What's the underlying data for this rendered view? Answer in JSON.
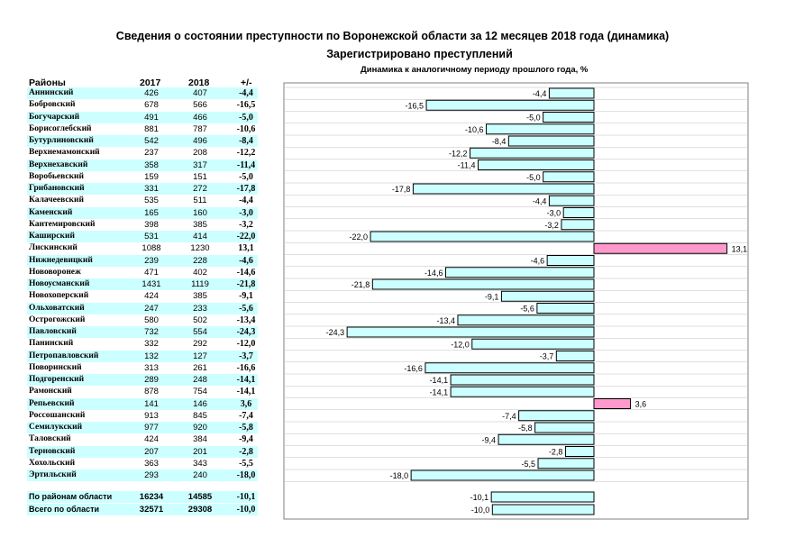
{
  "title": "Сведения о состоянии преступности по Воронежской области  за 12 месяцев 2018 года (динамика)",
  "subtitle": "Зарегистрировано преступлений",
  "table": {
    "headers": {
      "district": "Районы",
      "y2017": "2017",
      "y2018": "2018",
      "change": "+/-"
    },
    "rows": [
      {
        "name": "Аннинский",
        "y2017": "426",
        "y2018": "407",
        "change": "-4,4"
      },
      {
        "name": "Бобровский",
        "y2017": "678",
        "y2018": "566",
        "change": "-16,5"
      },
      {
        "name": "Богучарский",
        "y2017": "491",
        "y2018": "466",
        "change": "-5,0"
      },
      {
        "name": "Борисоглебский",
        "y2017": "881",
        "y2018": "787",
        "change": "-10,6"
      },
      {
        "name": "Бутурлиновский",
        "y2017": "542",
        "y2018": "496",
        "change": "-8,4"
      },
      {
        "name": "Верхнемамонский",
        "y2017": "237",
        "y2018": "208",
        "change": "-12,2"
      },
      {
        "name": "Верхнехавский",
        "y2017": "358",
        "y2018": "317",
        "change": "-11,4"
      },
      {
        "name": "Воробьевский",
        "y2017": "159",
        "y2018": "151",
        "change": "-5,0"
      },
      {
        "name": "Грибановский",
        "y2017": "331",
        "y2018": "272",
        "change": "-17,8"
      },
      {
        "name": "Калачеевский",
        "y2017": "535",
        "y2018": "511",
        "change": "-4,4"
      },
      {
        "name": "Каменский",
        "y2017": "165",
        "y2018": "160",
        "change": "-3,0"
      },
      {
        "name": "Кантемировский",
        "y2017": "398",
        "y2018": "385",
        "change": "-3,2"
      },
      {
        "name": "Каширский",
        "y2017": "531",
        "y2018": "414",
        "change": "-22,0"
      },
      {
        "name": "Лискинский",
        "y2017": "1088",
        "y2018": "1230",
        "change": "13,1"
      },
      {
        "name": "Нижнедевицкий",
        "y2017": "239",
        "y2018": "228",
        "change": "-4,6"
      },
      {
        "name": "Нововоронеж",
        "y2017": "471",
        "y2018": "402",
        "change": "-14,6"
      },
      {
        "name": "Новоусманский",
        "y2017": "1431",
        "y2018": "1119",
        "change": "-21,8"
      },
      {
        "name": "Новохоперский",
        "y2017": "424",
        "y2018": "385",
        "change": "-9,1"
      },
      {
        "name": "Ольховатский",
        "y2017": "247",
        "y2018": "233",
        "change": "-5,6"
      },
      {
        "name": "Острогожский",
        "y2017": "580",
        "y2018": "502",
        "change": "-13,4"
      },
      {
        "name": "Павловский",
        "y2017": "732",
        "y2018": "554",
        "change": "-24,3"
      },
      {
        "name": "Панинский",
        "y2017": "332",
        "y2018": "292",
        "change": "-12,0"
      },
      {
        "name": "Петропавловский",
        "y2017": "132",
        "y2018": "127",
        "change": "-3,7"
      },
      {
        "name": "Поворинский",
        "y2017": "313",
        "y2018": "261",
        "change": "-16,6"
      },
      {
        "name": "Подгоренский",
        "y2017": "289",
        "y2018": "248",
        "change": "-14,1"
      },
      {
        "name": "Рамонский",
        "y2017": "878",
        "y2018": "754",
        "change": "-14,1"
      },
      {
        "name": "Репьевский",
        "y2017": "141",
        "y2018": "146",
        "change": "3,6"
      },
      {
        "name": "Россошанский",
        "y2017": "913",
        "y2018": "845",
        "change": "-7,4"
      },
      {
        "name": "Семилукский",
        "y2017": "977",
        "y2018": "920",
        "change": "-5,8"
      },
      {
        "name": "Таловский",
        "y2017": "424",
        "y2018": "384",
        "change": "-9,4"
      },
      {
        "name": "Терновский",
        "y2017": "207",
        "y2018": "201",
        "change": "-2,8"
      },
      {
        "name": "Хохольский",
        "y2017": "363",
        "y2018": "343",
        "change": "-5,5"
      },
      {
        "name": "Эртильский",
        "y2017": "293",
        "y2018": "240",
        "change": "-18,0"
      }
    ],
    "totals": [
      {
        "name": "По районам области",
        "y2017": "16234",
        "y2018": "14585",
        "change": "-10,1"
      },
      {
        "name": "Всего по области",
        "y2017": "32571",
        "y2018": "29308",
        "change": "-10,0"
      }
    ]
  },
  "chart_data": {
    "type": "bar",
    "orientation": "horizontal",
    "title": "Динамика к аналогичному периоду прошлого года, %",
    "categories": [
      "Аннинский",
      "Бобровский",
      "Богучарский",
      "Борисоглебский",
      "Бутурлиновский",
      "Верхнемамонский",
      "Верхнехавский",
      "Воробьевский",
      "Грибановский",
      "Калачеевский",
      "Каменский",
      "Кантемировский",
      "Каширский",
      "Лискинский",
      "Нижнедевицкий",
      "Нововоронеж",
      "Новоусманский",
      "Новохоперский",
      "Ольховатский",
      "Острогожский",
      "Павловский",
      "Панинский",
      "Петропавловский",
      "Поворинский",
      "Подгоренский",
      "Рамонский",
      "Репьевский",
      "Россошанский",
      "Семилукский",
      "Таловский",
      "Терновский",
      "Хохольский",
      "Эртильский"
    ],
    "values": [
      -4.4,
      -16.5,
      -5.0,
      -10.6,
      -8.4,
      -12.2,
      -11.4,
      -5.0,
      -17.8,
      -4.4,
      -3.0,
      -3.2,
      -22.0,
      13.1,
      -4.6,
      -14.6,
      -21.8,
      -9.1,
      -5.6,
      -13.4,
      -24.3,
      -12.0,
      -3.7,
      -16.6,
      -14.1,
      -14.1,
      3.6,
      -7.4,
      -5.8,
      -9.4,
      -2.8,
      -5.5,
      -18.0
    ],
    "labels": [
      "-4,4",
      "-16,5",
      "-5,0",
      "-10,6",
      "-8,4",
      "-12,2",
      "-11,4",
      "-5,0",
      "-17,8",
      "-4,4",
      "-3,0",
      "-3,2",
      "-22,0",
      "13,1",
      "-4,6",
      "-14,6",
      "-21,8",
      "-9,1",
      "-5,6",
      "-13,4",
      "-24,3",
      "-12,0",
      "-3,7",
      "-16,6",
      "-14,1",
      "-14,1",
      "3,6",
      "-7,4",
      "-5,8",
      "-9,4",
      "-2,8",
      "-5,5",
      "-18,0"
    ],
    "totals": {
      "categories": [
        "По районам области",
        "Всего по области"
      ],
      "values": [
        -10.1,
        -10.0
      ],
      "labels": [
        "-10,1",
        "-10,0"
      ]
    },
    "xlim": [
      -27,
      14
    ],
    "colors": {
      "negative": "#ccffff",
      "positive": "#ff99cc",
      "border": "#000000",
      "grid": "#c0c0c0"
    }
  }
}
